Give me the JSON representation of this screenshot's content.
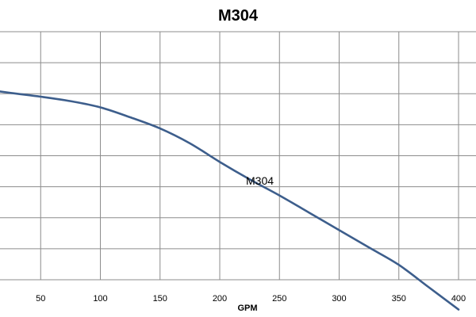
{
  "chart_data": {
    "type": "line",
    "title": "M304",
    "xlabel": "GPM",
    "ylabel": "",
    "xlim": [
      0,
      400
    ],
    "x_ticks": [
      50,
      100,
      150,
      200,
      250,
      300,
      350,
      400
    ],
    "x_tick_labels": [
      "50",
      "100",
      "150",
      "200",
      "250",
      "300",
      "350",
      "400"
    ],
    "y_gridlines": 9,
    "grid": true,
    "series": [
      {
        "name": "M304",
        "color": "#3d5e8c",
        "x": [
          0,
          25,
          50,
          75,
          100,
          125,
          150,
          175,
          200,
          225,
          250,
          275,
          300,
          325,
          350,
          375,
          400
        ],
        "y": [
          0.77,
          0.753,
          0.738,
          0.72,
          0.695,
          0.655,
          0.61,
          0.55,
          0.475,
          0.405,
          0.34,
          0.27,
          0.2,
          0.13,
          0.06,
          -0.03,
          -0.12
        ]
      }
    ]
  }
}
